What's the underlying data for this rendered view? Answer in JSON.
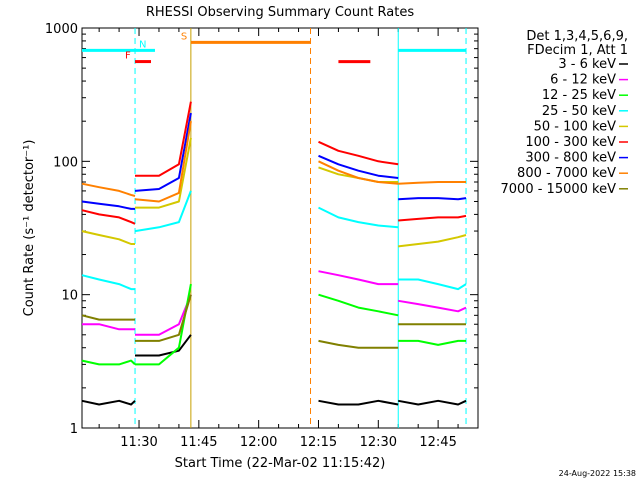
{
  "chart_data": {
    "type": "line",
    "title": "RHESSI Observing Summary Count Rates",
    "xlabel": "Start Time (22-Mar-02 11:15:42)",
    "ylabel": "Count Rate (s⁻¹ detector⁻¹)",
    "y_scale": "log",
    "ylim": [
      1,
      1000
    ],
    "xlim": [
      "11:15:42",
      "12:55:00"
    ],
    "x_ticks": [
      "11:30",
      "11:45",
      "12:00",
      "12:15",
      "12:30",
      "12:45"
    ],
    "y_ticks": [
      "1",
      "10",
      "100",
      "1000"
    ],
    "grid": false,
    "legend_position": "right",
    "legend_header": [
      "Det 1,3,4,5,6,9,",
      "FDecim 1, Att 1"
    ],
    "series": [
      {
        "name": "3 - 6 keV",
        "color": "#000000",
        "segments": [
          {
            "x": [
              "11:15:42",
              "11:20",
              "11:25",
              "11:28",
              "11:29"
            ],
            "y": [
              1.6,
              1.5,
              1.6,
              1.5,
              1.6
            ]
          },
          {
            "x": [
              "11:29",
              "11:35",
              "11:40",
              "11:43"
            ],
            "y": [
              3.5,
              3.5,
              3.8,
              5
            ]
          },
          {
            "x": [
              "12:15",
              "12:20",
              "12:25",
              "12:30",
              "12:35"
            ],
            "y": [
              1.6,
              1.5,
              1.5,
              1.6,
              1.5
            ]
          },
          {
            "x": [
              "12:35",
              "12:40",
              "12:45",
              "12:50",
              "12:52"
            ],
            "y": [
              1.6,
              1.5,
              1.6,
              1.5,
              1.6
            ]
          }
        ]
      },
      {
        "name": "6 - 12 keV",
        "color": "#ff00ff",
        "segments": [
          {
            "x": [
              "11:15:42",
              "11:20",
              "11:25",
              "11:28",
              "11:29"
            ],
            "y": [
              6,
              6,
              5.5,
              5.5,
              5.5
            ]
          },
          {
            "x": [
              "11:29",
              "11:35",
              "11:40",
              "11:43"
            ],
            "y": [
              5,
              5,
              6,
              10
            ]
          },
          {
            "x": [
              "12:15",
              "12:20",
              "12:25",
              "12:30",
              "12:35"
            ],
            "y": [
              15,
              14,
              13,
              12,
              12
            ]
          },
          {
            "x": [
              "12:35",
              "12:40",
              "12:45",
              "12:50",
              "12:52"
            ],
            "y": [
              9,
              8.5,
              8,
              7.5,
              8
            ]
          }
        ]
      },
      {
        "name": "12 - 25 keV",
        "color": "#00ff00",
        "segments": [
          {
            "x": [
              "11:15:42",
              "11:20",
              "11:25",
              "11:28",
              "11:29"
            ],
            "y": [
              3.2,
              3.0,
              3.0,
              3.2,
              3.0
            ]
          },
          {
            "x": [
              "11:29",
              "11:35",
              "11:40",
              "11:43"
            ],
            "y": [
              3,
              3,
              4,
              12
            ]
          },
          {
            "x": [
              "12:15",
              "12:20",
              "12:25",
              "12:30",
              "12:35"
            ],
            "y": [
              10,
              9,
              8,
              7.5,
              7
            ]
          },
          {
            "x": [
              "12:35",
              "12:40",
              "12:45",
              "12:50",
              "12:52"
            ],
            "y": [
              4.5,
              4.5,
              4.2,
              4.5,
              4.5
            ]
          }
        ]
      },
      {
        "name": "25 - 50 keV",
        "color": "#00ffff",
        "segments": [
          {
            "x": [
              "11:15:42",
              "11:20",
              "11:25",
              "11:28",
              "11:29"
            ],
            "y": [
              14,
              13,
              12,
              11,
              11
            ]
          },
          {
            "x": [
              "11:29",
              "11:35",
              "11:40",
              "11:43"
            ],
            "y": [
              30,
              32,
              35,
              60
            ]
          },
          {
            "x": [
              "12:15",
              "12:20",
              "12:25",
              "12:30",
              "12:35"
            ],
            "y": [
              45,
              38,
              35,
              33,
              32
            ]
          },
          {
            "x": [
              "12:35",
              "12:40",
              "12:45",
              "12:50",
              "12:52"
            ],
            "y": [
              13,
              13,
              12,
              11,
              12
            ]
          }
        ]
      },
      {
        "name": "50 - 100 keV",
        "color": "#d4c800",
        "segments": [
          {
            "x": [
              "11:15:42",
              "11:20",
              "11:25",
              "11:28",
              "11:29"
            ],
            "y": [
              30,
              28,
              26,
              24,
              24
            ]
          },
          {
            "x": [
              "11:29",
              "11:35",
              "11:40",
              "11:43"
            ],
            "y": [
              45,
              45,
              50,
              150
            ]
          },
          {
            "x": [
              "12:15",
              "12:20",
              "12:25",
              "12:30",
              "12:35"
            ],
            "y": [
              90,
              80,
              75,
              70,
              70
            ]
          },
          {
            "x": [
              "12:35",
              "12:40",
              "12:45",
              "12:50",
              "12:52"
            ],
            "y": [
              23,
              24,
              25,
              27,
              28
            ]
          }
        ]
      },
      {
        "name": "100 - 300 keV",
        "color": "#ff0000",
        "segments": [
          {
            "x": [
              "11:15:42",
              "11:20",
              "11:25",
              "11:28",
              "11:29"
            ],
            "y": [
              43,
              40,
              38,
              35,
              34
            ]
          },
          {
            "x": [
              "11:29",
              "11:35",
              "11:40",
              "11:43"
            ],
            "y": [
              78,
              78,
              95,
              280
            ]
          },
          {
            "x": [
              "12:15",
              "12:20",
              "12:25",
              "12:30",
              "12:35"
            ],
            "y": [
              140,
              120,
              110,
              100,
              95
            ]
          },
          {
            "x": [
              "12:35",
              "12:40",
              "12:45",
              "12:50",
              "12:52"
            ],
            "y": [
              36,
              37,
              38,
              38,
              39
            ]
          }
        ]
      },
      {
        "name": "300 - 800 keV",
        "color": "#0000ff",
        "segments": [
          {
            "x": [
              "11:15:42",
              "11:20",
              "11:25",
              "11:28",
              "11:29"
            ],
            "y": [
              50,
              48,
              46,
              44,
              44
            ]
          },
          {
            "x": [
              "11:29",
              "11:35",
              "11:40",
              "11:43"
            ],
            "y": [
              60,
              62,
              75,
              230
            ]
          },
          {
            "x": [
              "12:15",
              "12:20",
              "12:25",
              "12:30",
              "12:35"
            ],
            "y": [
              110,
              95,
              85,
              78,
              75
            ]
          },
          {
            "x": [
              "12:35",
              "12:40",
              "12:45",
              "12:50",
              "12:52"
            ],
            "y": [
              52,
              53,
              53,
              52,
              53
            ]
          }
        ]
      },
      {
        "name": "800 - 7000 keV",
        "color": "#ff8000",
        "segments": [
          {
            "x": [
              "11:15:42",
              "11:20",
              "11:25",
              "11:28",
              "11:29"
            ],
            "y": [
              68,
              64,
              60,
              56,
              55
            ]
          },
          {
            "x": [
              "11:29",
              "11:35",
              "11:40",
              "11:43"
            ],
            "y": [
              52,
              50,
              58,
              200
            ]
          },
          {
            "x": [
              "12:15",
              "12:20",
              "12:25",
              "12:30",
              "12:35"
            ],
            "y": [
              100,
              85,
              75,
              70,
              68
            ]
          },
          {
            "x": [
              "12:35",
              "12:40",
              "12:45",
              "12:50",
              "12:52"
            ],
            "y": [
              68,
              69,
              70,
              70,
              70
            ]
          }
        ]
      },
      {
        "name": "7000 - 15000 keV",
        "color": "#808000",
        "segments": [
          {
            "x": [
              "11:15:42",
              "11:20",
              "11:25",
              "11:28",
              "11:29"
            ],
            "y": [
              7,
              6.5,
              6.5,
              6.5,
              6.5
            ]
          },
          {
            "x": [
              "11:29",
              "11:35",
              "11:40",
              "11:43"
            ],
            "y": [
              4.5,
              4.5,
              5,
              10
            ]
          },
          {
            "x": [
              "12:15",
              "12:20",
              "12:25",
              "12:30",
              "12:35"
            ],
            "y": [
              4.5,
              4.2,
              4,
              4,
              4
            ]
          },
          {
            "x": [
              "12:35",
              "12:40",
              "12:45",
              "12:50",
              "12:52"
            ],
            "y": [
              6,
              6,
              6,
              6,
              6
            ]
          }
        ]
      }
    ],
    "state_bars": [
      {
        "label": "",
        "color": "#00ffff",
        "x": [
          "11:15:42",
          "11:29"
        ],
        "y": 680
      },
      {
        "label": "",
        "color": "#00ffff",
        "x": [
          "12:35",
          "12:52"
        ],
        "y": 680
      },
      {
        "label": "F",
        "color": "#ff0000",
        "x": [
          "11:29",
          "11:33"
        ],
        "y": 560
      },
      {
        "label": "N",
        "color": "#00ffff",
        "x": [
          "11:29",
          "11:34"
        ],
        "y": 680
      },
      {
        "label": "S",
        "color": "#ff8000",
        "x": [
          "11:43",
          "12:13"
        ],
        "y": 780
      },
      {
        "label": "",
        "color": "#ff0000",
        "x": [
          "12:20",
          "12:28"
        ],
        "y": 560
      }
    ],
    "vertical_markers": [
      {
        "x": "11:29",
        "color": "#00ffff",
        "style": "dashed"
      },
      {
        "x": "11:43",
        "color": "#c8a000",
        "style": "solid"
      },
      {
        "x": "12:13",
        "color": "#ff8000",
        "style": "dashed"
      },
      {
        "x": "12:35",
        "color": "#00ffff",
        "style": "solid"
      },
      {
        "x": "12:52",
        "color": "#00ffff",
        "style": "dashed"
      }
    ]
  },
  "timestamp": "24-Aug-2022 15:38"
}
